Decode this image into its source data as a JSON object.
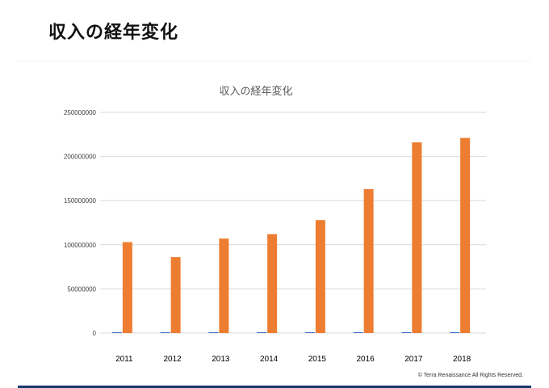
{
  "slide": {
    "title": "収入の経年変化",
    "copyright": "© Terra Renaissance  All Rights Reserved."
  },
  "colors": {
    "series_small": "#4472c4",
    "series_large": "#ed7d31",
    "grid": "#d9d9d9",
    "bottom_bar": "#16396b"
  },
  "chart_data": {
    "type": "bar",
    "title": "収入の経年変化",
    "categories": [
      "2011",
      "2012",
      "2013",
      "2014",
      "2015",
      "2016",
      "2017",
      "2018"
    ],
    "series": [
      {
        "values": [
          700000,
          700000,
          700000,
          700000,
          700000,
          700000,
          700000,
          700000
        ],
        "color": "#4472c4"
      },
      {
        "values": [
          103000000,
          86000000,
          107000000,
          112000000,
          128000000,
          163000000,
          216000000,
          221000000
        ],
        "color": "#ed7d31"
      }
    ],
    "ylim": [
      0,
      250000000
    ],
    "yticks": [
      "0",
      "50000000",
      "100000000",
      "150000000",
      "200000000",
      "250000000"
    ],
    "grid": true,
    "legend": "none"
  }
}
